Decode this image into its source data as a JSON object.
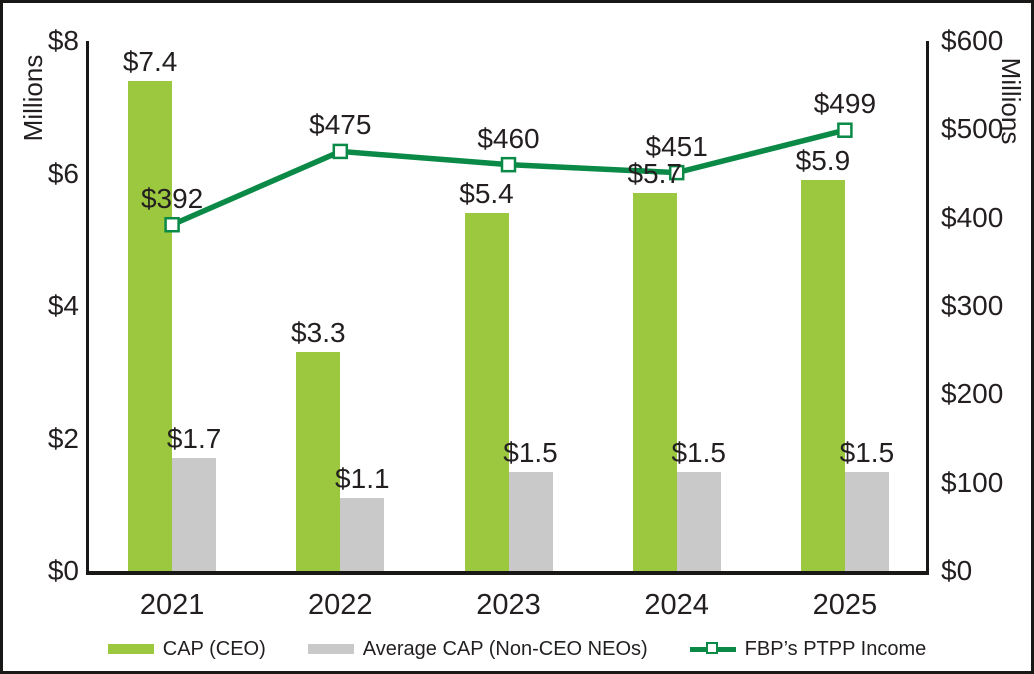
{
  "chart_data": {
    "type": "combo-bar-line",
    "categories": [
      "2021",
      "2022",
      "2023",
      "2024",
      "2025"
    ],
    "series": [
      {
        "name": "CAP (CEO)",
        "kind": "bar",
        "axis": "left",
        "color": "#9bc83e",
        "values": [
          7.4,
          3.3,
          5.4,
          5.7,
          5.9
        ],
        "labels": [
          "$7.4",
          "$3.3",
          "$5.4",
          "$5.7",
          "$5.9"
        ]
      },
      {
        "name": "Average CAP (Non-CEO NEOs)",
        "kind": "bar",
        "axis": "left",
        "color": "#c9c9c9",
        "values": [
          1.7,
          1.1,
          1.5,
          1.5,
          1.5
        ],
        "labels": [
          "$1.7",
          "$1.1",
          "$1.5",
          "$1.5",
          "$1.5"
        ]
      },
      {
        "name": "FBP’s PTPP Income",
        "kind": "line",
        "axis": "right",
        "color": "#0a8a46",
        "marker": "open-square",
        "values": [
          392,
          475,
          460,
          451,
          499
        ],
        "labels": [
          "$392",
          "$475",
          "$460",
          "$451",
          "$499"
        ]
      }
    ],
    "left_axis": {
      "label": "Millions",
      "min": 0,
      "max": 8,
      "ticks": [
        "$0",
        "$2",
        "$4",
        "$6",
        "$8"
      ],
      "tick_values": [
        0,
        2,
        4,
        6,
        8
      ]
    },
    "right_axis": {
      "label": "Millions",
      "min": 0,
      "max": 600,
      "ticks": [
        "$0",
        "$100",
        "$200",
        "$300",
        "$400",
        "$500",
        "$600"
      ],
      "tick_values": [
        0,
        100,
        200,
        300,
        400,
        500,
        600
      ]
    },
    "legend": {
      "position": "bottom",
      "entries": [
        "CAP (CEO)",
        "Average CAP (Non-CEO NEOs)",
        "FBP’s PTPP Income"
      ]
    },
    "colors": {
      "text": "#231f20",
      "axis": "#1a1717",
      "background": "#ffffff"
    }
  }
}
